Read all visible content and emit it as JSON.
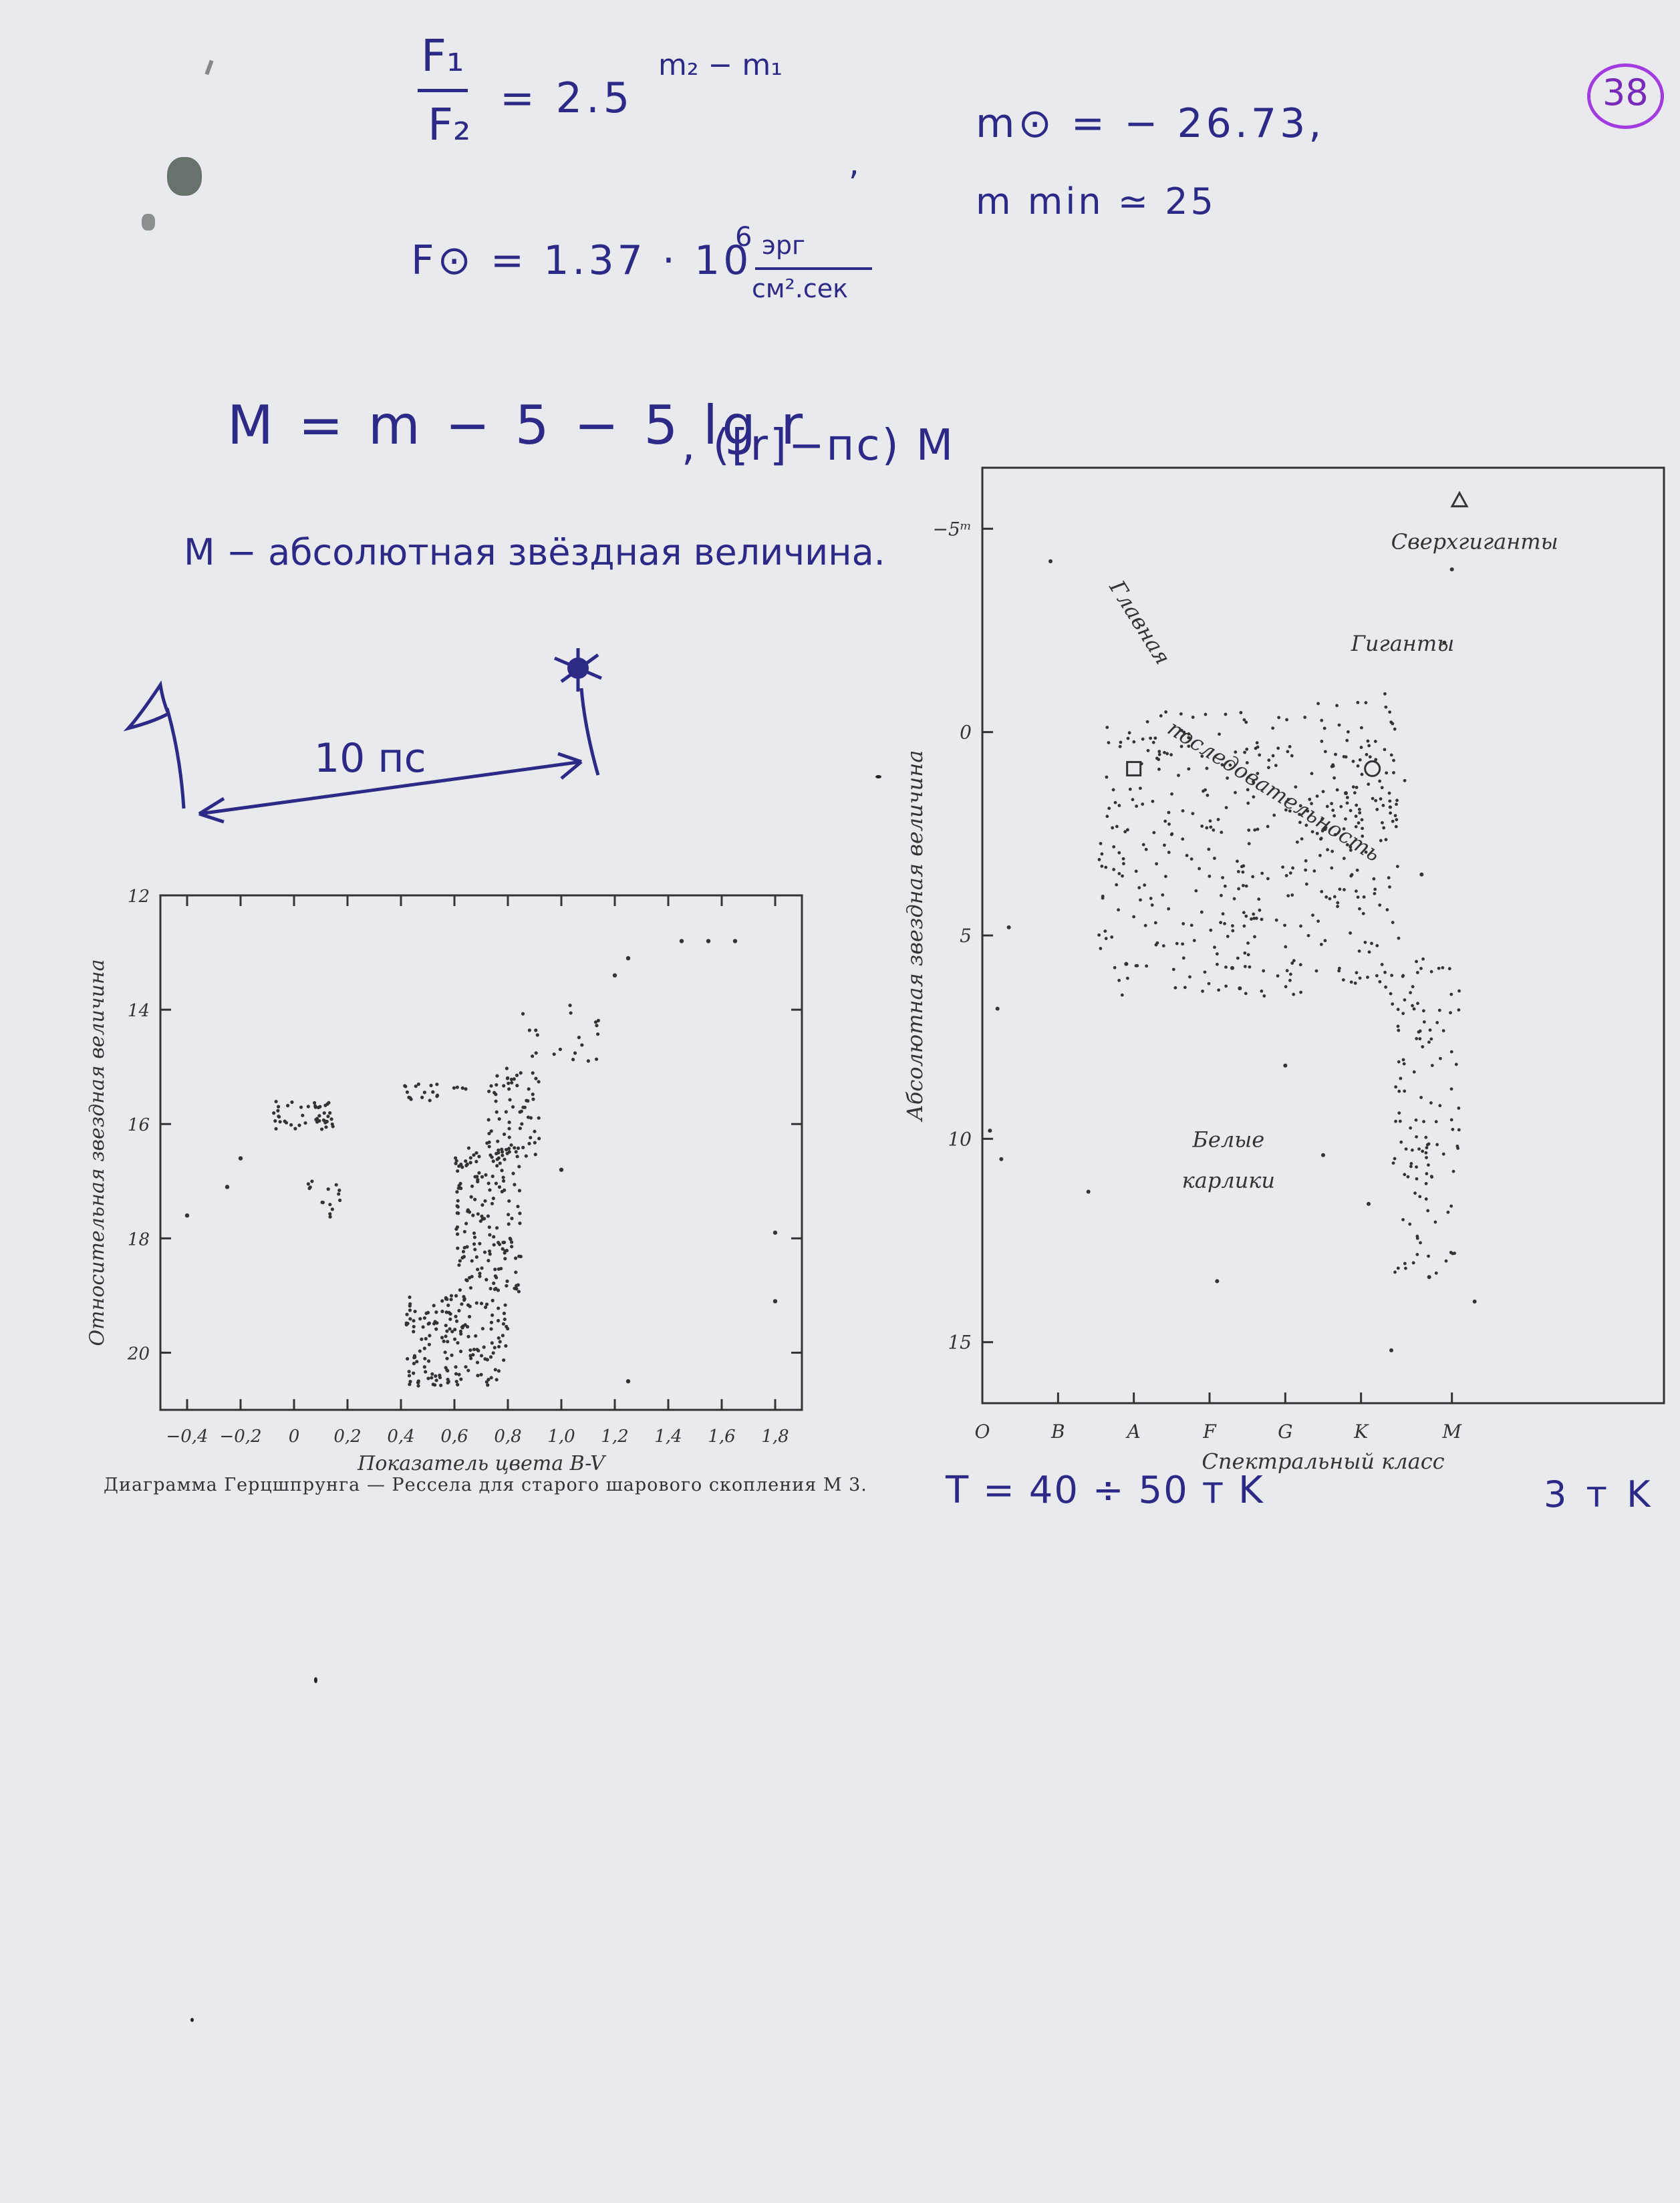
{
  "page": {
    "number": "38"
  },
  "handwriting": {
    "ratio_numerator": "F₁",
    "ratio_denominator": "F₂",
    "ratio_rhs": "= 2.5",
    "ratio_exponent": "m₂ − m₁",
    "comma": ",",
    "sun_mag": "m⊙ = − 26.73,",
    "min_mag": "m min ≃ 25",
    "sun_flux": "F⊙ = 1.37 · 10",
    "sun_flux_exp": "6",
    "sun_flux_unit_num": "эрг",
    "sun_flux_unit_den": "см².сек",
    "abs_formula": "M = m − 5 − 5 lg r",
    "abs_formula_units": ", ([r]−пс) M",
    "abs_definition": "M − абсолютная звёздная величина.",
    "distance_label": "10 пс",
    "temp_hot": "T = 40 ÷ 50 т K",
    "temp_cool": "3 т K"
  },
  "left_chart_caption": "Диаграмма Герцшпрунга — Рессела для старого шарового скопления М 3.",
  "chart_data": [
    {
      "type": "scatter",
      "title": "",
      "xlabel": "Показатель цвета B-V",
      "ylabel": "Относительная звездная величина",
      "xlim": [
        -0.5,
        1.9
      ],
      "ylim": [
        21,
        12
      ],
      "y_inverted": true,
      "x_ticks": [
        "−0,4",
        "−0,2",
        "0",
        "0,2",
        "0,4",
        "0,6",
        "0,8",
        "1,0",
        "1,2",
        "1,4",
        "1,6",
        "1,8"
      ],
      "x_tick_values": [
        -0.4,
        -0.2,
        0,
        0.2,
        0.4,
        0.6,
        0.8,
        1.0,
        1.2,
        1.4,
        1.6,
        1.8
      ],
      "y_ticks": [
        "12",
        "14",
        "16",
        "18",
        "20"
      ],
      "y_tick_values": [
        12,
        14,
        16,
        18,
        20
      ],
      "groups": [
        {
          "name": "",
          "x_range": [
            0.42,
            0.8
          ],
          "y_range": [
            19.0,
            20.6
          ],
          "count": 170
        },
        {
          "name": "",
          "x_range": [
            0.6,
            0.85
          ],
          "y_range": [
            16.4,
            19.0
          ],
          "count": 160
        },
        {
          "name": "",
          "x_range": [
            0.72,
            0.92
          ],
          "y_range": [
            15.0,
            16.6
          ],
          "count": 70
        },
        {
          "name": "",
          "x_range": [
            0.85,
            1.15
          ],
          "y_range": [
            13.9,
            14.9
          ],
          "count": 20
        },
        {
          "name": "",
          "x_range": [
            -0.08,
            0.15
          ],
          "y_range": [
            15.6,
            16.1
          ],
          "count": 45
        },
        {
          "name": "",
          "x_range": [
            0.4,
            0.65
          ],
          "y_range": [
            15.3,
            15.6
          ],
          "count": 20
        },
        {
          "name": "",
          "x_range": [
            0.05,
            0.18
          ],
          "y_range": [
            17.0,
            17.8
          ],
          "count": 15
        }
      ],
      "points": [
        {
          "x": 1.2,
          "y": 13.4
        },
        {
          "x": 1.25,
          "y": 13.1
        },
        {
          "x": 1.45,
          "y": 12.8
        },
        {
          "x": 1.55,
          "y": 12.8
        },
        {
          "x": 1.65,
          "y": 12.8
        },
        {
          "x": -0.2,
          "y": 16.6
        },
        {
          "x": -0.4,
          "y": 17.6
        },
        {
          "x": -0.25,
          "y": 17.1
        },
        {
          "x": 1.8,
          "y": 17.9
        },
        {
          "x": 1.8,
          "y": 19.1
        },
        {
          "x": 1.25,
          "y": 20.5
        },
        {
          "x": 1.0,
          "y": 16.8
        }
      ]
    },
    {
      "type": "scatter",
      "title": "",
      "xlabel": "Спектральный класс",
      "ylabel": "Абсолютная звездная величина",
      "xlim": [
        0,
        9
      ],
      "ylim": [
        16.5,
        -6.5
      ],
      "y_inverted": true,
      "x_ticks": [
        "O",
        "B",
        "A",
        "F",
        "G",
        "K",
        "M"
      ],
      "x_tick_values": [
        0,
        1,
        2,
        3,
        4,
        5,
        6.2
      ],
      "y_ticks": [
        "−5ᵐ",
        "0",
        "5",
        "10",
        "15"
      ],
      "y_tick_values": [
        -5,
        0,
        5,
        10,
        15
      ],
      "region_labels": [
        "Сверхгиганты",
        "Гиганты",
        "Главная",
        "последовательность",
        "Белые",
        "карлики"
      ],
      "groups": [
        {
          "name": "",
          "x_range": [
            1.5,
            5.5
          ],
          "y_range": [
            -0.5,
            6.5
          ],
          "count": 380
        },
        {
          "name": "",
          "x_range": [
            5.4,
            6.3
          ],
          "y_range": [
            5.5,
            13.5
          ],
          "count": 120
        },
        {
          "name": "",
          "x_range": [
            4.4,
            5.6
          ],
          "y_range": [
            -1.0,
            3.0
          ],
          "count": 50
        }
      ],
      "points": [
        {
          "x": 0.9,
          "y": -4.2
        },
        {
          "x": 0.35,
          "y": 4.8
        },
        {
          "x": 0.2,
          "y": 6.8
        },
        {
          "x": 0.25,
          "y": 10.5
        },
        {
          "x": 0.1,
          "y": 9.8
        },
        {
          "x": 1.4,
          "y": 11.3
        },
        {
          "x": 1.9,
          "y": 5.7
        },
        {
          "x": 3.3,
          "y": 5.8
        },
        {
          "x": 3.4,
          "y": 6.3
        },
        {
          "x": 4.5,
          "y": 10.4
        },
        {
          "x": 3.1,
          "y": 13.5
        },
        {
          "x": 5.1,
          "y": 11.6
        },
        {
          "x": 5.9,
          "y": 13.4
        },
        {
          "x": 5.4,
          "y": 15.2
        },
        {
          "x": 6.5,
          "y": 14.0
        },
        {
          "x": 5.8,
          "y": 3.5
        },
        {
          "x": 6.2,
          "y": -4.0
        },
        {
          "x": 6.1,
          "y": -2.2
        },
        {
          "x": 4.8,
          "y": 1.5
        },
        {
          "x": 4.0,
          "y": 8.2
        }
      ],
      "markers": [
        {
          "symbol": "triangle",
          "x": 6.3,
          "y": -5.7
        },
        {
          "symbol": "square",
          "x": 2.0,
          "y": 0.9
        },
        {
          "symbol": "circle",
          "x": 5.15,
          "y": 0.9
        }
      ]
    }
  ]
}
